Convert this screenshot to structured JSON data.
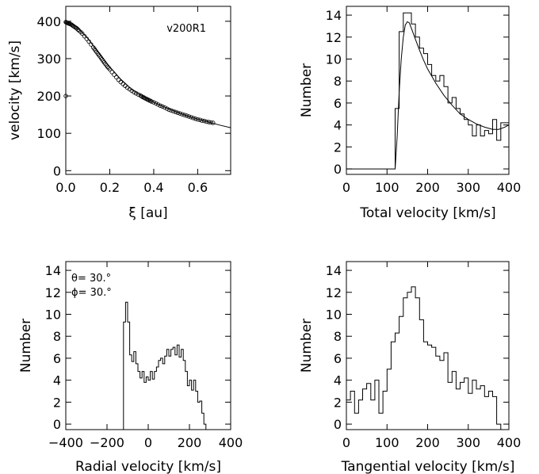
{
  "chart_data": [
    {
      "id": "p1",
      "type": "scatter",
      "xlabel": "ξ [au]",
      "ylabel": "velocity [km/s]",
      "xlim": [
        0,
        0.75
      ],
      "ylim": [
        -10,
        440
      ],
      "xticks": [
        0.0,
        0.2,
        0.4,
        0.6
      ],
      "xtick_labels": [
        "0.0",
        "0.2",
        "0.4",
        "0.6"
      ],
      "yticks": [
        0,
        100,
        200,
        300,
        400
      ],
      "ytick_labels": [
        "0",
        "100",
        "200",
        "300",
        "400"
      ],
      "annotations": [
        "v200R1"
      ],
      "points": [
        [
          0.0,
          398
        ],
        [
          0.003,
          397
        ],
        [
          0.006,
          396
        ],
        [
          0.01,
          395
        ],
        [
          0.014,
          394
        ],
        [
          0.018,
          393
        ],
        [
          0.022,
          392
        ],
        [
          0.026,
          391
        ],
        [
          0.03,
          389
        ],
        [
          0.035,
          387
        ],
        [
          0.04,
          385
        ],
        [
          0.045,
          383
        ],
        [
          0.05,
          381
        ],
        [
          0.055,
          378
        ],
        [
          0.06,
          375
        ],
        [
          0.068,
          371
        ],
        [
          0.075,
          367
        ],
        [
          0.085,
          360
        ],
        [
          0.095,
          353
        ],
        [
          0.105,
          346
        ],
        [
          0.115,
          338
        ],
        [
          0.125,
          330
        ],
        [
          0.13,
          326
        ],
        [
          0.135,
          322
        ],
        [
          0.14,
          318
        ],
        [
          0.145,
          314
        ],
        [
          0.15,
          310
        ],
        [
          0.155,
          306
        ],
        [
          0.16,
          302
        ],
        [
          0.165,
          298
        ],
        [
          0.17,
          294
        ],
        [
          0.175,
          290
        ],
        [
          0.18,
          286
        ],
        [
          0.185,
          282
        ],
        [
          0.19,
          278
        ],
        [
          0.195,
          275
        ],
        [
          0.2,
          271
        ],
        [
          0.21,
          264
        ],
        [
          0.22,
          257
        ],
        [
          0.23,
          250
        ],
        [
          0.24,
          243
        ],
        [
          0.25,
          237
        ],
        [
          0.26,
          232
        ],
        [
          0.27,
          227
        ],
        [
          0.28,
          222
        ],
        [
          0.29,
          218
        ],
        [
          0.3,
          214
        ],
        [
          0.31,
          210
        ],
        [
          0.32,
          207
        ],
        [
          0.33,
          204
        ],
        [
          0.34,
          201
        ],
        [
          0.345,
          199
        ],
        [
          0.35,
          197
        ],
        [
          0.355,
          196
        ],
        [
          0.36,
          194
        ],
        [
          0.365,
          193
        ],
        [
          0.37,
          191
        ],
        [
          0.375,
          190
        ],
        [
          0.38,
          188
        ],
        [
          0.385,
          187
        ],
        [
          0.39,
          185
        ],
        [
          0.4,
          183
        ],
        [
          0.41,
          180
        ],
        [
          0.42,
          177
        ],
        [
          0.43,
          174
        ],
        [
          0.44,
          172
        ],
        [
          0.45,
          169
        ],
        [
          0.46,
          166
        ],
        [
          0.47,
          163
        ],
        [
          0.48,
          161
        ],
        [
          0.49,
          159
        ],
        [
          0.5,
          157
        ],
        [
          0.51,
          155
        ],
        [
          0.52,
          153
        ],
        [
          0.53,
          151
        ],
        [
          0.54,
          149
        ],
        [
          0.55,
          147
        ],
        [
          0.56,
          145
        ],
        [
          0.57,
          143
        ],
        [
          0.58,
          141
        ],
        [
          0.59,
          139
        ],
        [
          0.6,
          137
        ],
        [
          0.61,
          136
        ],
        [
          0.62,
          134
        ],
        [
          0.63,
          133
        ],
        [
          0.64,
          131
        ],
        [
          0.65,
          130
        ],
        [
          0.66,
          129
        ],
        [
          0.67,
          128
        ],
        [
          0.0,
          200
        ]
      ],
      "curve": [
        [
          0.0,
          398
        ],
        [
          0.05,
          385
        ],
        [
          0.1,
          354
        ],
        [
          0.15,
          315
        ],
        [
          0.2,
          278
        ],
        [
          0.25,
          245
        ],
        [
          0.3,
          218
        ],
        [
          0.35,
          198
        ],
        [
          0.4,
          183
        ],
        [
          0.45,
          170
        ],
        [
          0.5,
          158
        ],
        [
          0.55,
          147
        ],
        [
          0.6,
          138
        ],
        [
          0.65,
          130
        ],
        [
          0.7,
          122
        ],
        [
          0.75,
          115
        ]
      ]
    },
    {
      "id": "p2",
      "type": "step",
      "xlabel": "Total velocity [km/s]",
      "ylabel": "Number",
      "xlim": [
        0,
        400
      ],
      "ylim": [
        -0.5,
        14.8
      ],
      "xticks": [
        0,
        100,
        200,
        300,
        400
      ],
      "xtick_labels": [
        "0",
        "100",
        "200",
        "300",
        "400"
      ],
      "yticks": [
        0,
        2,
        4,
        6,
        8,
        10,
        12,
        14
      ],
      "ytick_labels": [
        "0",
        "2",
        "4",
        "6",
        "8",
        "10",
        "12",
        "14"
      ],
      "bin_edges": [
        0,
        120,
        130,
        140,
        150,
        160,
        170,
        180,
        190,
        200,
        210,
        220,
        230,
        240,
        250,
        260,
        270,
        280,
        290,
        300,
        310,
        320,
        330,
        340,
        350,
        360,
        370,
        380,
        390,
        400
      ],
      "counts": [
        0,
        5.5,
        12.5,
        14.2,
        14.2,
        13.2,
        12,
        11,
        10.5,
        9.5,
        8.5,
        8,
        8.5,
        7.5,
        6,
        6.5,
        5.5,
        5,
        4.5,
        4,
        3,
        4,
        3,
        3.5,
        3.2,
        4.5,
        2.6,
        4.2,
        4.2
      ],
      "final_drop_to": -0.5,
      "curve": [
        [
          120,
          0
        ],
        [
          125,
          3
        ],
        [
          130,
          7
        ],
        [
          135,
          10
        ],
        [
          140,
          12
        ],
        [
          145,
          13.1
        ],
        [
          150,
          13.4
        ],
        [
          155,
          13.3
        ],
        [
          160,
          12.8
        ],
        [
          170,
          11.8
        ],
        [
          180,
          10.8
        ],
        [
          190,
          9.9
        ],
        [
          200,
          9.1
        ],
        [
          220,
          7.8
        ],
        [
          240,
          6.7
        ],
        [
          260,
          5.8
        ],
        [
          280,
          5
        ],
        [
          300,
          4.5
        ],
        [
          320,
          4.1
        ],
        [
          340,
          3.8
        ],
        [
          360,
          3.6
        ],
        [
          375,
          3.6
        ],
        [
          390,
          3.8
        ],
        [
          400,
          4
        ]
      ]
    },
    {
      "id": "p3",
      "type": "step",
      "xlabel": "Radial velocity [km/s]",
      "ylabel": "Number",
      "xlim": [
        -400,
        400
      ],
      "ylim": [
        -0.5,
        14.8
      ],
      "xticks": [
        -400,
        -200,
        0,
        200,
        400
      ],
      "xtick_labels": [
        "−400",
        "−200",
        "0",
        "200",
        "400"
      ],
      "yticks": [
        0,
        2,
        4,
        6,
        8,
        10,
        12,
        14
      ],
      "ytick_labels": [
        "0",
        "2",
        "4",
        "6",
        "8",
        "10",
        "12",
        "14"
      ],
      "annotations": [
        "θ= 30.°",
        "ϕ= 30.°"
      ],
      "bin_edges": [
        -120,
        -110,
        -100,
        -90,
        -80,
        -70,
        -60,
        -50,
        -40,
        -30,
        -20,
        -10,
        0,
        10,
        20,
        30,
        40,
        50,
        60,
        70,
        80,
        90,
        100,
        110,
        120,
        130,
        140,
        150,
        160,
        170,
        180,
        190,
        200,
        210,
        220,
        230,
        240,
        250,
        260,
        270,
        280
      ],
      "counts": [
        9.3,
        11.1,
        9.3,
        6.3,
        5.7,
        6.6,
        5.5,
        4.8,
        4.2,
        4.8,
        3.8,
        4.3,
        4.0,
        4.8,
        4.1,
        4.8,
        5.2,
        5.8,
        6.0,
        5.5,
        6.2,
        6.8,
        6.2,
        6.8,
        7.0,
        6.3,
        7.2,
        6.1,
        6.8,
        5.8,
        4.8,
        3.5,
        4.0,
        3.1,
        4.0,
        3.0,
        2.0,
        2.1,
        1.0,
        0.0
      ],
      "final_drop_to": -0.5
    },
    {
      "id": "p4",
      "type": "step",
      "xlabel": "Tangential velocity [km/s]",
      "ylabel": "Number",
      "xlim": [
        0,
        400
      ],
      "ylim": [
        -0.5,
        14.8
      ],
      "xticks": [
        0,
        100,
        200,
        300,
        400
      ],
      "xtick_labels": [
        "0",
        "100",
        "200",
        "300",
        "400"
      ],
      "yticks": [
        0,
        2,
        4,
        6,
        8,
        10,
        12,
        14
      ],
      "ytick_labels": [
        "0",
        "2",
        "4",
        "6",
        "8",
        "10",
        "12",
        "14"
      ],
      "bin_edges": [
        0,
        10,
        20,
        30,
        40,
        50,
        60,
        70,
        80,
        90,
        100,
        110,
        120,
        130,
        140,
        150,
        160,
        170,
        180,
        190,
        200,
        210,
        220,
        230,
        240,
        250,
        260,
        270,
        280,
        290,
        300,
        310,
        320,
        330,
        340,
        350,
        360,
        370,
        380
      ],
      "counts": [
        2.2,
        3.0,
        1.0,
        2.2,
        3.2,
        3.7,
        2.2,
        4.0,
        1.0,
        3.0,
        5.0,
        7.5,
        8.3,
        9.8,
        11.5,
        12.0,
        12.5,
        11.5,
        9.5,
        7.5,
        7.2,
        7.0,
        6.2,
        5.8,
        6.5,
        3.8,
        4.8,
        3.2,
        3.8,
        4.2,
        2.8,
        4.0,
        3.2,
        3.5,
        2.5,
        3.0,
        2.5,
        0
      ],
      "final_drop_to": -0.5
    }
  ]
}
